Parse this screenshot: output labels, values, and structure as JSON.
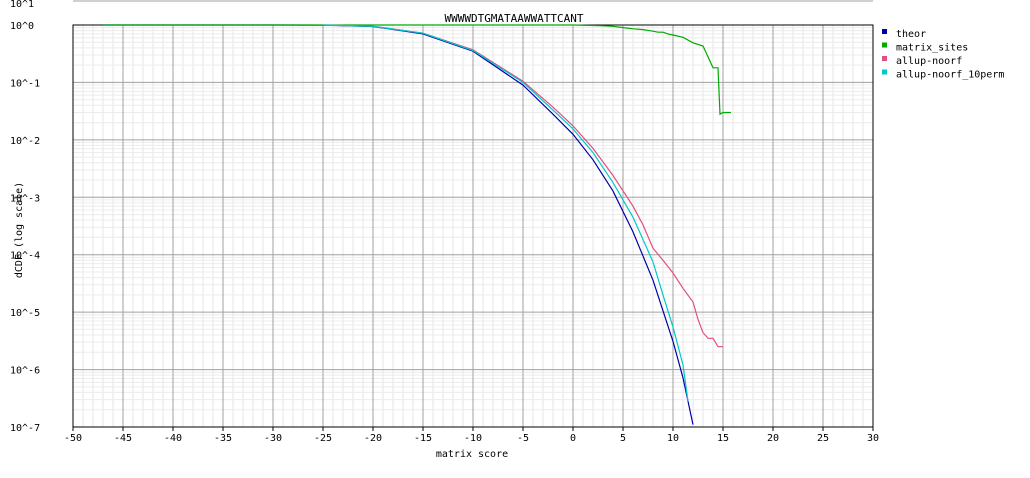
{
  "chart_data": {
    "type": "line",
    "title": "WWWWDTGMATAAWWATTCANT",
    "xlabel": "matrix score",
    "ylabel": "dCDF (log scale)",
    "xlim": [
      -50,
      30
    ],
    "ylim_log10": [
      -7,
      0
    ],
    "y_scale": "log",
    "grid": true,
    "legend_position": "right",
    "x_ticks": [
      "-50",
      "-45",
      "-40",
      "-35",
      "-30",
      "-25",
      "-20",
      "-15",
      "-10",
      "-5",
      "0",
      "5",
      "10",
      "15",
      "20",
      "25",
      "30"
    ],
    "y_ticks": [
      "10^0",
      "10^-1",
      "10^-2",
      "10^-3",
      "10^-4",
      "10^-5",
      "10^-6",
      "10^-7"
    ],
    "top_partial_tick": "10^1",
    "series": [
      {
        "name": "theor",
        "color": "#0000aa",
        "points": [
          [
            -47,
            1
          ],
          [
            -30,
            1
          ],
          [
            -25,
            0.995
          ],
          [
            -20,
            0.94
          ],
          [
            -15,
            0.7
          ],
          [
            -10,
            0.35
          ],
          [
            -5,
            0.09
          ],
          [
            -2,
            0.028
          ],
          [
            0,
            0.0125
          ],
          [
            2,
            0.0045
          ],
          [
            4,
            0.00128
          ],
          [
            6,
            0.00025
          ],
          [
            8,
            3.6e-05
          ],
          [
            10,
            3.1e-06
          ],
          [
            11,
            7.2e-07
          ],
          [
            12,
            1.1e-07
          ]
        ]
      },
      {
        "name": "matrix_sites",
        "color": "#00aa00",
        "points": [
          [
            -47,
            1
          ],
          [
            0,
            1
          ],
          [
            3,
            0.97
          ],
          [
            4,
            0.95
          ],
          [
            5,
            0.9
          ],
          [
            6,
            0.86
          ],
          [
            7,
            0.83
          ],
          [
            8,
            0.78
          ],
          [
            8.5,
            0.75
          ],
          [
            9,
            0.75
          ],
          [
            9.5,
            0.7
          ],
          [
            10,
            0.67
          ],
          [
            11,
            0.61
          ],
          [
            12,
            0.49
          ],
          [
            13,
            0.43
          ],
          [
            13.5,
            0.28
          ],
          [
            14,
            0.18
          ],
          [
            14.5,
            0.18
          ],
          [
            14.7,
            0.028
          ],
          [
            15,
            0.03
          ],
          [
            15.8,
            0.03
          ]
        ]
      },
      {
        "name": "allup-noorf",
        "color": "#e05080",
        "points": [
          [
            -25,
            1
          ],
          [
            -20,
            0.95
          ],
          [
            -15,
            0.72
          ],
          [
            -10,
            0.37
          ],
          [
            -5,
            0.105
          ],
          [
            -2,
            0.037
          ],
          [
            0,
            0.0175
          ],
          [
            2,
            0.0071
          ],
          [
            4,
            0.0024
          ],
          [
            6,
            0.0007
          ],
          [
            7,
            0.00033
          ],
          [
            8,
            0.00013
          ],
          [
            9,
            8e-05
          ],
          [
            10,
            4.8e-05
          ],
          [
            11,
            2.6e-05
          ],
          [
            12,
            1.5e-05
          ],
          [
            12.5,
            7.5e-06
          ],
          [
            13,
            4.4e-06
          ],
          [
            13.5,
            3.5e-06
          ],
          [
            14,
            3.5e-06
          ],
          [
            14.5,
            2.5e-06
          ],
          [
            15,
            2.5e-06
          ]
        ]
      },
      {
        "name": "allup-noorf_10perm",
        "color": "#00c8c8",
        "points": [
          [
            -25,
            1
          ],
          [
            -20,
            0.95
          ],
          [
            -15,
            0.72
          ],
          [
            -10,
            0.36
          ],
          [
            -5,
            0.1
          ],
          [
            -2,
            0.033
          ],
          [
            0,
            0.0155
          ],
          [
            2,
            0.006
          ],
          [
            4,
            0.0018
          ],
          [
            6,
            0.00045
          ],
          [
            8,
            7.5e-05
          ],
          [
            9,
            2e-05
          ],
          [
            10,
            5.5e-06
          ],
          [
            11,
            1.2e-06
          ],
          [
            11.5,
            2.8e-07
          ]
        ]
      }
    ]
  }
}
